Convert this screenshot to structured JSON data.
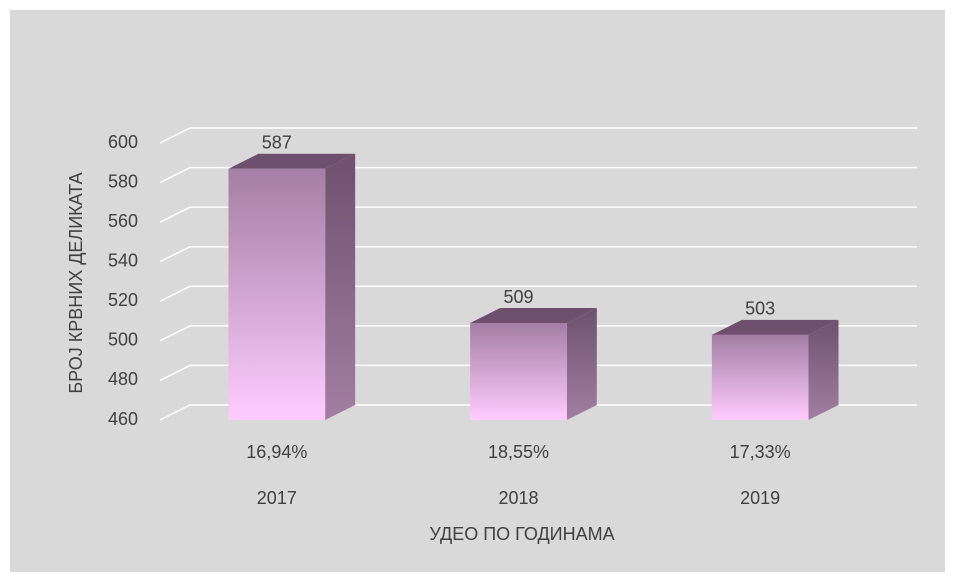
{
  "chart_data": {
    "type": "bar3d",
    "categories": [
      "2017",
      "2018",
      "2019"
    ],
    "category_shares": [
      "16,94%",
      "18,55%",
      "17,33%"
    ],
    "values": [
      587,
      509,
      503
    ],
    "color": "#ffccff",
    "ylim": [
      460,
      600
    ],
    "yticks": [
      460,
      480,
      500,
      520,
      540,
      560,
      580,
      600
    ],
    "grid": true,
    "ylabel": "БРОЈ КРВНИХ ДЕЛИКАТА",
    "xlabel": "УДЕО ПО ГОДИНАМА"
  }
}
